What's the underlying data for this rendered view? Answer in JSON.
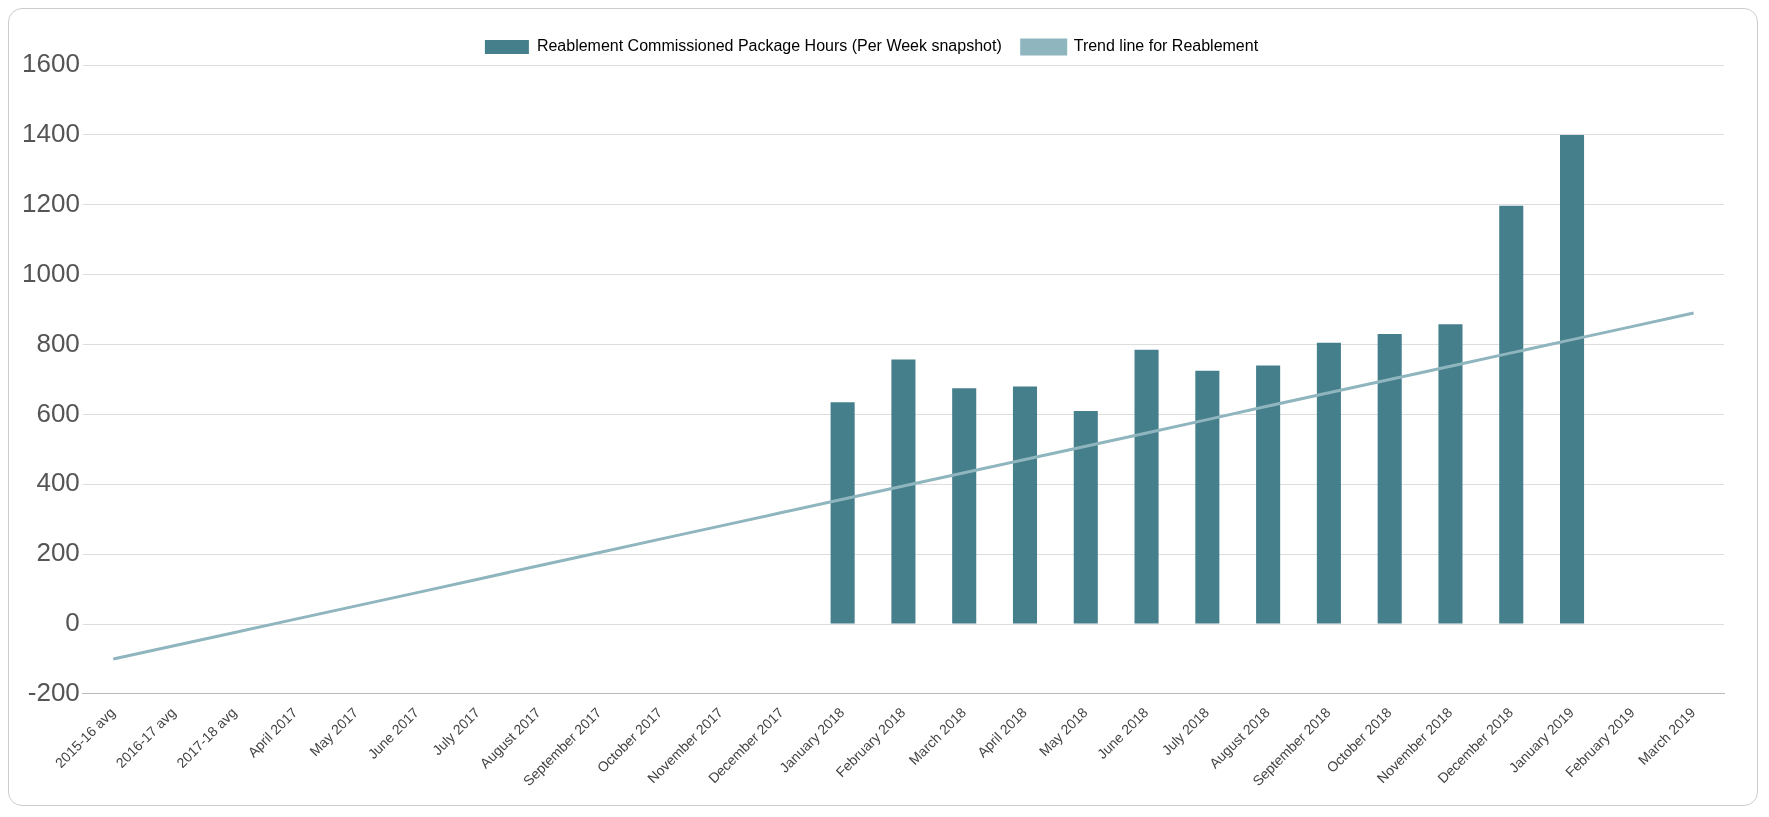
{
  "chart_data": {
    "type": "bar",
    "categories": [
      "2015-16 avg",
      "2016-17 avg",
      "2017-18 avg",
      "April 2017",
      "May 2017",
      "June 2017",
      "July 2017",
      "August 2017",
      "September 2017",
      "October 2017",
      "November 2017",
      "December 2017",
      "January 2018",
      "February 2018",
      "March 2018",
      "April 2018",
      "May 2018",
      "June 2018",
      "July 2018",
      "August 2018",
      "September 2018",
      "October 2018",
      "November 2018",
      "December 2018",
      "January 2019",
      "February 2019",
      "March 2019"
    ],
    "series": [
      {
        "name": "Reablement Commissioned Package Hours (Per Week snapshot)",
        "color": "#457f8b",
        "values": [
          null,
          null,
          null,
          null,
          null,
          null,
          null,
          null,
          null,
          null,
          null,
          null,
          635,
          757,
          675,
          680,
          610,
          785,
          725,
          740,
          805,
          830,
          858,
          1197,
          1400,
          null,
          null
        ]
      },
      {
        "name": "Trend line for Reablement",
        "type": "line",
        "color": "#8fb5be",
        "values": [
          -100,
          -62,
          -24,
          14,
          52,
          90,
          128,
          167,
          205,
          243,
          281,
          319,
          357,
          395,
          433,
          471,
          509,
          547,
          585,
          624,
          662,
          700,
          738,
          776,
          814,
          852,
          890
        ]
      }
    ],
    "ylim": [
      -200,
      1600
    ],
    "yticks": [
      -200,
      0,
      200,
      400,
      600,
      800,
      1000,
      1200,
      1400,
      1600
    ],
    "grid": "y",
    "legend": "top",
    "marker": "none",
    "line_style": "solid"
  }
}
